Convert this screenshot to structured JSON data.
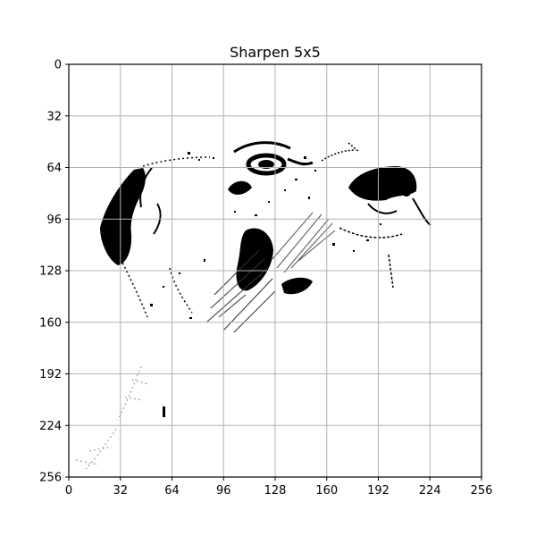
{
  "chart_data": {
    "type": "heatmap",
    "title": "Sharpen 5x5",
    "xlabel": "",
    "ylabel": "",
    "xlim": [
      0,
      256
    ],
    "ylim": [
      256,
      0
    ],
    "x_ticks": [
      0,
      32,
      64,
      96,
      128,
      160,
      192,
      224,
      256
    ],
    "y_ticks": [
      0,
      32,
      64,
      96,
      128,
      160,
      192,
      224,
      256
    ],
    "grid": true,
    "colormap": "grayscale (white = 0, black = high edge response)",
    "image_content": "sharpened greyscale image of a dog's head in profile: eye, nose, ear and jaw edges in black on white",
    "colors": {
      "background": "#ffffff",
      "grid": "#b0b0b0",
      "ink": "#000000"
    }
  }
}
